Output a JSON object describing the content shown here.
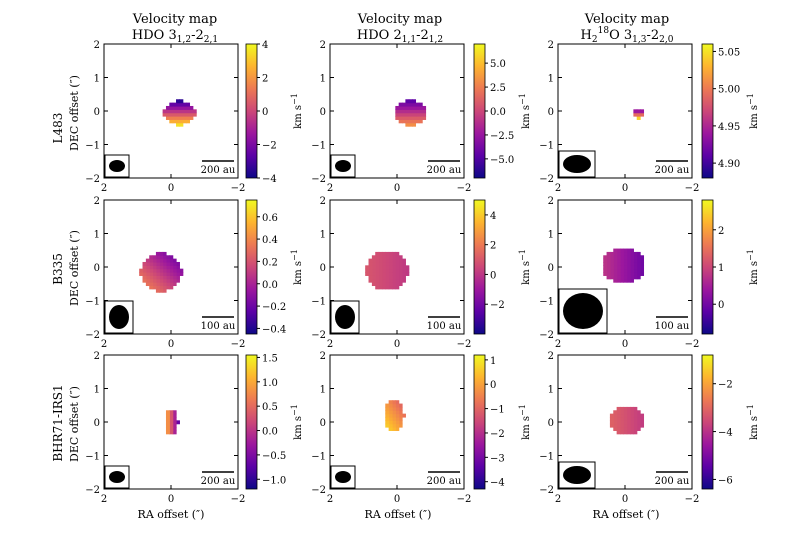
{
  "figure": {
    "column_titles": [
      {
        "line1": "Velocity map",
        "line2": "HDO 3",
        "sub1": "1,2",
        "mid": "-2",
        "sub2": "2,1"
      },
      {
        "line1": "Velocity map",
        "line2": "HDO 2",
        "sub1": "1,1",
        "mid": "-2",
        "sub2": "1,2"
      },
      {
        "line1": "Velocity map",
        "line2": "H",
        "sub_h": "2",
        "sup_iso": "18",
        "rest": "O 3",
        "sub1": "1,3",
        "mid": "-2",
        "sub2": "2,0"
      }
    ],
    "row_sources": [
      "L483",
      "B335",
      "BHR71-IRS1"
    ],
    "ylabel": "DEC offset (″)",
    "xlabel": "RA offset (″)",
    "colorbar_label": "km s",
    "colorbar_label_exp": "−1",
    "colormap": [
      "#0d0887",
      "#5c01a6",
      "#9c179e",
      "#cc4778",
      "#ed7953",
      "#fdb42f",
      "#f0f921"
    ]
  },
  "chart_data": [
    {
      "type": "heatmap",
      "source": "L483",
      "transition": "HDO 3_1,2-2_2,1",
      "xlim": [
        2,
        -2
      ],
      "ylim": [
        -2,
        2
      ],
      "xticks": [
        "2",
        "0",
        "−2"
      ],
      "yticks": [
        "2",
        "1",
        "0",
        "−1",
        "−2"
      ],
      "cbar_range": [
        -4,
        4
      ],
      "cbar_ticks": [
        "4",
        "2",
        "0",
        "−2",
        "−4"
      ],
      "scalebar": "200 au",
      "beam_size": "small"
    },
    {
      "type": "heatmap",
      "source": "L483",
      "transition": "HDO 2_1,1-2_1,2",
      "xlim": [
        2,
        -2
      ],
      "ylim": [
        -2,
        2
      ],
      "xticks": [
        "2",
        "0",
        "−2"
      ],
      "yticks": [
        "2",
        "1",
        "0",
        "−1",
        "−2"
      ],
      "cbar_range": [
        -7,
        7
      ],
      "cbar_ticks": [
        "5.0",
        "2.5",
        "0.0",
        "−2.5",
        "−5.0"
      ],
      "scalebar": "200 au",
      "beam_size": "small"
    },
    {
      "type": "heatmap",
      "source": "L483",
      "transition": "H2 18O 3_1,3-2_2,0",
      "xlim": [
        2,
        -2
      ],
      "ylim": [
        -2,
        2
      ],
      "xticks": [
        "2",
        "0",
        "−2"
      ],
      "yticks": [
        "2",
        "1",
        "0",
        "−1",
        "−2"
      ],
      "cbar_range": [
        4.88,
        5.06
      ],
      "cbar_ticks": [
        "5.05",
        "5.00",
        "4.95",
        "4.90"
      ],
      "scalebar": "200 au",
      "beam_size": "large"
    },
    {
      "type": "heatmap",
      "source": "B335",
      "transition": "HDO 3_1,2-2_2,1",
      "xlim": [
        2,
        -2
      ],
      "ylim": [
        -2,
        2
      ],
      "xticks": [
        "2",
        "0",
        "−2"
      ],
      "yticks": [
        "2",
        "1",
        "0",
        "−1",
        "−2"
      ],
      "cbar_range": [
        -0.45,
        0.75
      ],
      "cbar_ticks": [
        "0.6",
        "0.4",
        "0.2",
        "0.0",
        "−0.2",
        "−0.4"
      ],
      "scalebar": "100 au",
      "beam_size": "medium"
    },
    {
      "type": "heatmap",
      "source": "B335",
      "transition": "HDO 2_1,1-2_1,2",
      "xlim": [
        2,
        -2
      ],
      "ylim": [
        -2,
        2
      ],
      "xticks": [
        "2",
        "0",
        "−2"
      ],
      "yticks": [
        "2",
        "1",
        "0",
        "−1",
        "−2"
      ],
      "cbar_range": [
        -4,
        5
      ],
      "cbar_ticks": [
        "4",
        "2",
        "0",
        "−2"
      ],
      "scalebar": "100 au",
      "beam_size": "medium"
    },
    {
      "type": "heatmap",
      "source": "B335",
      "transition": "H2 18O 3_1,3-2_2,0",
      "xlim": [
        2,
        -2
      ],
      "ylim": [
        -2,
        2
      ],
      "xticks": [
        "2",
        "0",
        "−2"
      ],
      "yticks": [
        "2",
        "1",
        "0",
        "−1",
        "−2"
      ],
      "cbar_range": [
        -0.8,
        2.8
      ],
      "cbar_ticks": [
        "2",
        "1",
        "0"
      ],
      "scalebar": "100 au",
      "beam_size": "xlarge"
    },
    {
      "type": "heatmap",
      "source": "BHR71-IRS1",
      "transition": "HDO 3_1,2-2_2,1",
      "xlim": [
        2,
        -2
      ],
      "ylim": [
        -2,
        2
      ],
      "xticks": [
        "2",
        "0",
        "−2"
      ],
      "yticks": [
        "2",
        "1",
        "0",
        "−1",
        "−2"
      ],
      "cbar_range": [
        -1.2,
        1.55
      ],
      "cbar_ticks": [
        "1.5",
        "1.0",
        "0.5",
        "0.0",
        "−0.5",
        "−1.0"
      ],
      "scalebar": "200 au",
      "beam_size": "small"
    },
    {
      "type": "heatmap",
      "source": "BHR71-IRS1",
      "transition": "HDO 2_1,1-2_1,2",
      "xlim": [
        2,
        -2
      ],
      "ylim": [
        -2,
        2
      ],
      "xticks": [
        "2",
        "0",
        "−2"
      ],
      "yticks": [
        "2",
        "1",
        "0",
        "−1",
        "−2"
      ],
      "cbar_range": [
        -4.3,
        1.2
      ],
      "cbar_ticks": [
        "1",
        "0",
        "−1",
        "−2",
        "−3",
        "−4"
      ],
      "scalebar": "200 au",
      "beam_size": "small"
    },
    {
      "type": "heatmap",
      "source": "BHR71-IRS1",
      "transition": "H2 18O 3_1,3-2_2,0",
      "xlim": [
        2,
        -2
      ],
      "ylim": [
        -2,
        2
      ],
      "xticks": [
        "2",
        "0",
        "−2"
      ],
      "yticks": [
        "2",
        "1",
        "0",
        "−1",
        "−2"
      ],
      "cbar_range": [
        -6.4,
        -0.8
      ],
      "cbar_ticks": [
        "−2",
        "−4",
        "−6"
      ],
      "scalebar": "200 au",
      "beam_size": "large"
    }
  ]
}
